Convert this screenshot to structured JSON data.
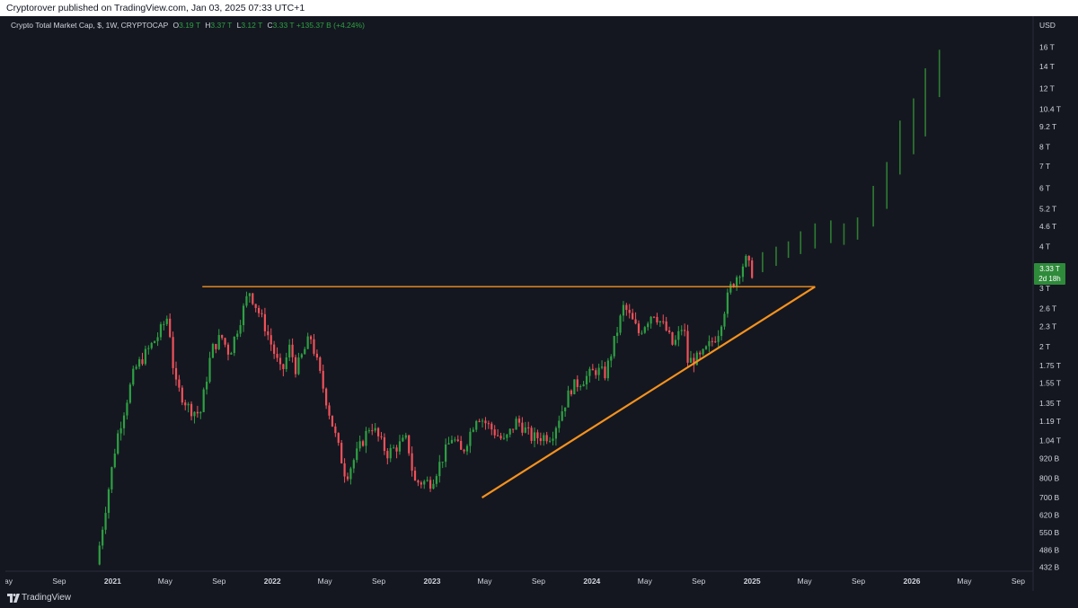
{
  "header": {
    "published": "Cryptorover published on TradingView.com, Jan 03, 2025 07:33 UTC+1"
  },
  "legend": {
    "symbol": "Crypto Total Market Cap, $, 1W, CRYPTOCAP",
    "o_label": "O",
    "o_value": "3.19 T",
    "h_label": "H",
    "h_value": "3.37 T",
    "l_label": "L",
    "l_value": "3.12 T",
    "c_label": "C",
    "c_value": "3.33 T",
    "change": "+135.37 B (+4.24%)"
  },
  "price_axis": {
    "currency": "USD",
    "current_price": "3.33 T",
    "countdown": "2d 18h"
  },
  "footer": {
    "brand": "TradingView"
  },
  "colors": {
    "background": "#141720",
    "up": "#2ea043",
    "down": "#f0515a",
    "projection": "#2e7d32",
    "trendline": "#f6921e"
  },
  "chart_data": {
    "type": "candlestick",
    "title": "Crypto Total Market Cap, $, 1W, CRYPTOCAP",
    "y_scale": "log",
    "y_unit": "USD",
    "ylim": [
      420000000000,
      17500000000000
    ],
    "x_range": [
      "2020-05-01",
      "2026-10-01"
    ],
    "y_ticks": [
      {
        "label": "16 T",
        "value": 16000000000000
      },
      {
        "label": "14 T",
        "value": 14000000000000
      },
      {
        "label": "12 T",
        "value": 12000000000000
      },
      {
        "label": "10.4 T",
        "value": 10400000000000
      },
      {
        "label": "9.2 T",
        "value": 9200000000000
      },
      {
        "label": "8 T",
        "value": 8000000000000
      },
      {
        "label": "7 T",
        "value": 7000000000000
      },
      {
        "label": "6 T",
        "value": 6000000000000
      },
      {
        "label": "5.2 T",
        "value": 5200000000000
      },
      {
        "label": "4.6 T",
        "value": 4600000000000
      },
      {
        "label": "4 T",
        "value": 4000000000000
      },
      {
        "label": "3 T",
        "value": 3000000000000
      },
      {
        "label": "2.6 T",
        "value": 2600000000000
      },
      {
        "label": "2.3 T",
        "value": 2300000000000
      },
      {
        "label": "2 T",
        "value": 2000000000000
      },
      {
        "label": "1.75 T",
        "value": 1750000000000
      },
      {
        "label": "1.55 T",
        "value": 1550000000000
      },
      {
        "label": "1.35 T",
        "value": 1350000000000
      },
      {
        "label": "1.19 T",
        "value": 1190000000000
      },
      {
        "label": "1.04 T",
        "value": 1040000000000
      },
      {
        "label": "920 B",
        "value": 920000000000
      },
      {
        "label": "800 B",
        "value": 800000000000
      },
      {
        "label": "700 B",
        "value": 700000000000
      },
      {
        "label": "620 B",
        "value": 620000000000
      },
      {
        "label": "550 B",
        "value": 550000000000
      },
      {
        "label": "486 B",
        "value": 486000000000
      },
      {
        "label": "432 B",
        "value": 432000000000
      }
    ],
    "x_ticks": [
      {
        "label": "May",
        "date": "2020-05-01",
        "bold": false
      },
      {
        "label": "Sep",
        "date": "2020-09-01",
        "bold": false
      },
      {
        "label": "2021",
        "date": "2021-01-01",
        "bold": true
      },
      {
        "label": "May",
        "date": "2021-05-01",
        "bold": false
      },
      {
        "label": "Sep",
        "date": "2021-09-01",
        "bold": false
      },
      {
        "label": "2022",
        "date": "2022-01-01",
        "bold": true
      },
      {
        "label": "May",
        "date": "2022-05-01",
        "bold": false
      },
      {
        "label": "Sep",
        "date": "2022-09-01",
        "bold": false
      },
      {
        "label": "2023",
        "date": "2023-01-01",
        "bold": true
      },
      {
        "label": "May",
        "date": "2023-05-01",
        "bold": false
      },
      {
        "label": "Sep",
        "date": "2023-09-01",
        "bold": false
      },
      {
        "label": "2024",
        "date": "2024-01-01",
        "bold": true
      },
      {
        "label": "May",
        "date": "2024-05-01",
        "bold": false
      },
      {
        "label": "Sep",
        "date": "2024-09-01",
        "bold": false
      },
      {
        "label": "2025",
        "date": "2025-01-01",
        "bold": true
      },
      {
        "label": "May",
        "date": "2025-05-01",
        "bold": false
      },
      {
        "label": "Sep",
        "date": "2025-09-01",
        "bold": false
      },
      {
        "label": "2026",
        "date": "2026-01-01",
        "bold": true
      },
      {
        "label": "May",
        "date": "2026-05-01",
        "bold": false
      },
      {
        "label": "Sep",
        "date": "2026-09-01",
        "bold": false
      }
    ],
    "price_path": [
      {
        "date": "2020-11-25",
        "value": 440000000000
      },
      {
        "date": "2021-01-10",
        "value": 1050000000000
      },
      {
        "date": "2021-02-20",
        "value": 1700000000000
      },
      {
        "date": "2021-04-14",
        "value": 2150000000000
      },
      {
        "date": "2021-05-08",
        "value": 2480000000000
      },
      {
        "date": "2021-05-23",
        "value": 1550000000000
      },
      {
        "date": "2021-06-25",
        "value": 1300000000000
      },
      {
        "date": "2021-07-20",
        "value": 1250000000000
      },
      {
        "date": "2021-08-15",
        "value": 1950000000000
      },
      {
        "date": "2021-09-06",
        "value": 2150000000000
      },
      {
        "date": "2021-09-25",
        "value": 1900000000000
      },
      {
        "date": "2021-11-09",
        "value": 2950000000000
      },
      {
        "date": "2021-12-15",
        "value": 2300000000000
      },
      {
        "date": "2022-01-22",
        "value": 1650000000000
      },
      {
        "date": "2022-02-10",
        "value": 2000000000000
      },
      {
        "date": "2022-02-24",
        "value": 1700000000000
      },
      {
        "date": "2022-03-29",
        "value": 2150000000000
      },
      {
        "date": "2022-05-12",
        "value": 1250000000000
      },
      {
        "date": "2022-06-18",
        "value": 810000000000
      },
      {
        "date": "2022-08-14",
        "value": 1170000000000
      },
      {
        "date": "2022-09-20",
        "value": 950000000000
      },
      {
        "date": "2022-11-05",
        "value": 1050000000000
      },
      {
        "date": "2022-11-21",
        "value": 780000000000
      },
      {
        "date": "2022-12-30",
        "value": 780000000000
      },
      {
        "date": "2023-02-16",
        "value": 1070000000000
      },
      {
        "date": "2023-03-10",
        "value": 950000000000
      },
      {
        "date": "2023-04-14",
        "value": 1250000000000
      },
      {
        "date": "2023-06-15",
        "value": 1030000000000
      },
      {
        "date": "2023-07-14",
        "value": 1200000000000
      },
      {
        "date": "2023-08-17",
        "value": 1060000000000
      },
      {
        "date": "2023-10-01",
        "value": 1080000000000
      },
      {
        "date": "2023-11-15",
        "value": 1500000000000
      },
      {
        "date": "2024-01-11",
        "value": 1700000000000
      },
      {
        "date": "2024-02-01",
        "value": 1650000000000
      },
      {
        "date": "2024-03-14",
        "value": 2650000000000
      },
      {
        "date": "2024-04-17",
        "value": 2200000000000
      },
      {
        "date": "2024-05-20",
        "value": 2550000000000
      },
      {
        "date": "2024-06-18",
        "value": 2250000000000
      },
      {
        "date": "2024-07-05",
        "value": 2000000000000
      },
      {
        "date": "2024-07-29",
        "value": 2350000000000
      },
      {
        "date": "2024-08-05",
        "value": 1800000000000
      },
      {
        "date": "2024-09-06",
        "value": 1850000000000
      },
      {
        "date": "2024-10-15",
        "value": 2200000000000
      },
      {
        "date": "2024-11-12",
        "value": 3000000000000
      },
      {
        "date": "2024-12-17",
        "value": 3650000000000
      },
      {
        "date": "2025-01-02",
        "value": 3330000000000
      }
    ],
    "projection_bars": [
      {
        "date": "2025-01-25",
        "low": 3350000000000,
        "high": 3850000000000
      },
      {
        "date": "2025-02-25",
        "low": 3500000000000,
        "high": 4000000000000
      },
      {
        "date": "2025-03-25",
        "low": 3700000000000,
        "high": 4150000000000
      },
      {
        "date": "2025-04-22",
        "low": 3800000000000,
        "high": 4450000000000
      },
      {
        "date": "2025-05-25",
        "low": 3950000000000,
        "high": 4700000000000
      },
      {
        "date": "2025-06-30",
        "low": 4100000000000,
        "high": 4800000000000
      },
      {
        "date": "2025-07-30",
        "low": 4050000000000,
        "high": 4700000000000
      },
      {
        "date": "2025-08-30",
        "low": 4200000000000,
        "high": 4900000000000
      },
      {
        "date": "2025-10-05",
        "low": 4600000000000,
        "high": 6100000000000
      },
      {
        "date": "2025-11-05",
        "low": 5200000000000,
        "high": 7200000000000
      },
      {
        "date": "2025-12-05",
        "low": 6600000000000,
        "high": 9600000000000
      },
      {
        "date": "2026-01-05",
        "low": 7600000000000,
        "high": 11200000000000
      },
      {
        "date": "2026-02-01",
        "low": 8600000000000,
        "high": 13800000000000
      },
      {
        "date": "2026-03-05",
        "low": 11300000000000,
        "high": 15700000000000
      }
    ],
    "annotations": [
      {
        "kind": "horizontal_resistance",
        "from": "2021-07-25",
        "to": "2025-05-25",
        "value": 3030000000000
      },
      {
        "kind": "rising_trendline",
        "from": "2023-04-25",
        "from_value": 700000000000,
        "to": "2025-05-25",
        "to_value": 3030000000000
      }
    ]
  }
}
